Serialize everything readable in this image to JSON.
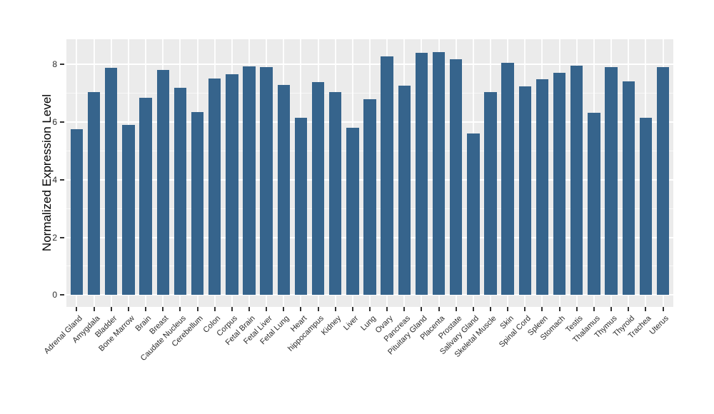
{
  "chart_data": {
    "type": "bar",
    "title": "",
    "xlabel": "",
    "ylabel": "Normalized Expression Level",
    "ylim": [
      -0.42,
      8.87
    ],
    "yticks": [
      0,
      2,
      4,
      6,
      8
    ],
    "yticks_minor": [
      1,
      3,
      5,
      7
    ],
    "grid": "on",
    "legend": "none",
    "categories": [
      "Adrenal Gland",
      "Amygdala",
      "Bladder",
      "Bone Marrow",
      "Brain",
      "Breast",
      "Caudate Nucleus",
      "Cerebellum",
      "Colon",
      "Corpus",
      "Fetal Brain",
      "Fetal Liver",
      "Fetal Lung",
      "Heart",
      "hippocampus",
      "Kidney",
      "Liver",
      "Lung",
      "Ovary",
      "Pancreas",
      "Pituitary Gland",
      "Placenta",
      "Prostate",
      "Salivary Gland",
      "Skeletal Muscle",
      "Skin",
      "Spinal Cord",
      "Spleen",
      "Stomach",
      "Testis",
      "Thalamus",
      "Thymus",
      "Thyroid",
      "Trachea",
      "Uterus"
    ],
    "values": [
      5.75,
      7.05,
      7.88,
      5.9,
      6.85,
      7.82,
      7.2,
      6.35,
      7.52,
      7.65,
      7.93,
      7.9,
      7.28,
      6.15,
      7.38,
      7.03,
      5.8,
      6.8,
      8.27,
      7.27,
      8.4,
      8.42,
      8.18,
      5.6,
      7.05,
      8.05,
      7.25,
      7.48,
      7.72,
      7.95,
      6.33,
      7.92,
      7.42,
      6.15,
      7.92
    ],
    "colors": {
      "bar": "#36648C",
      "panel_background": "#EBEBEB",
      "gridline": "#FFFFFF",
      "tick": "#333333",
      "axis_text": "#2b2b2b"
    }
  }
}
